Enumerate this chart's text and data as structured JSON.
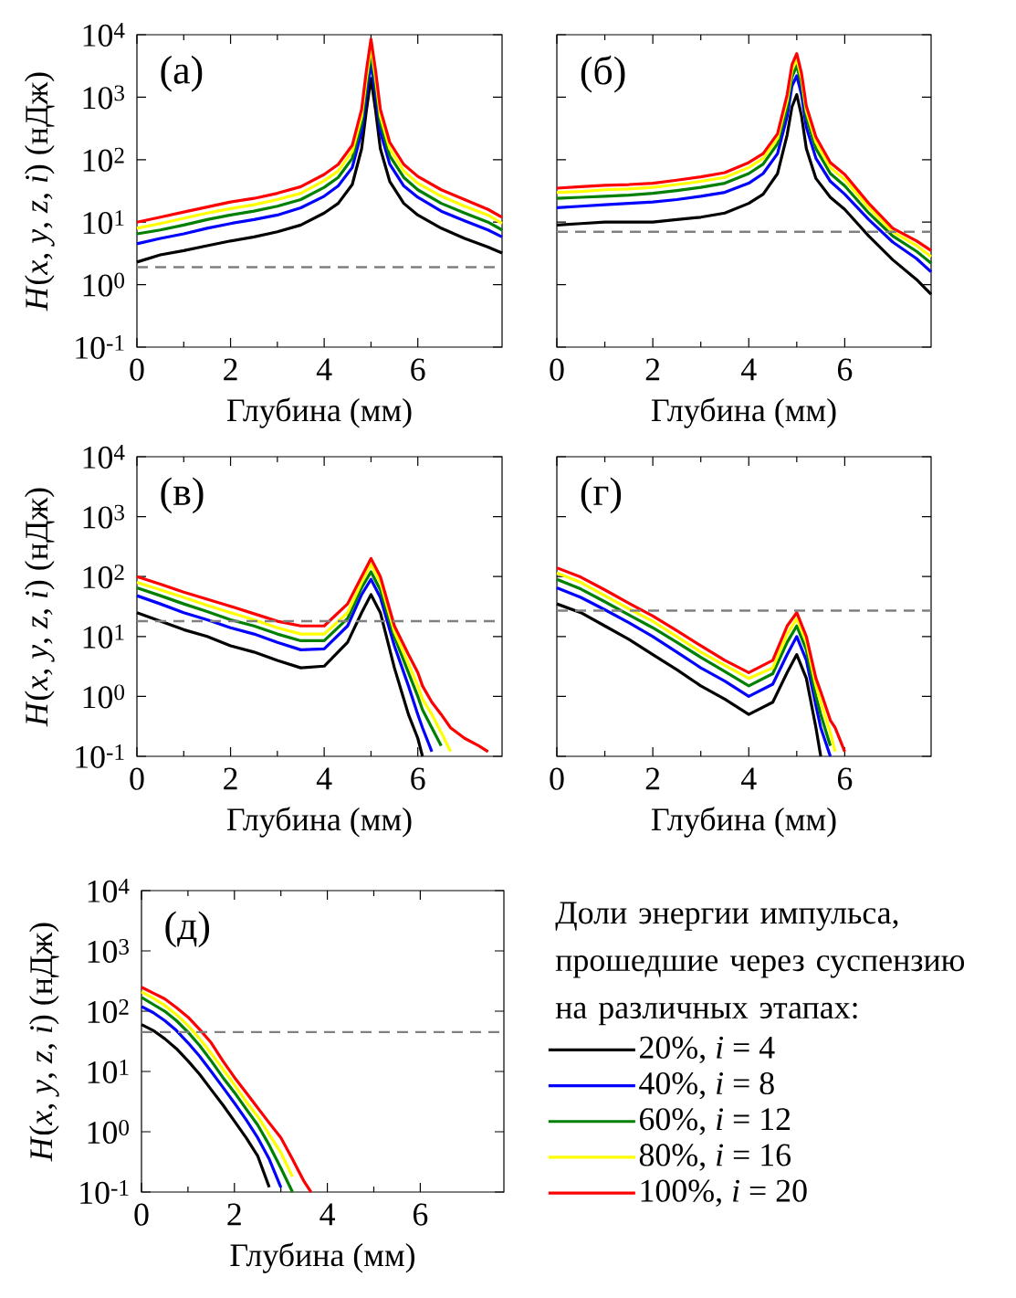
{
  "chart_data": [
    {
      "type": "line",
      "xlabel": "Глубина (мм)",
      "ylabel": "*H*(*x*, *y*, *z*, *i*) (нДж)",
      "annotations": [
        "(а)"
      ],
      "log": "y",
      "marker": "none",
      "xlim": [
        0,
        7.8
      ],
      "xticks": [
        0,
        2,
        4,
        6
      ],
      "ylim": [
        0.1,
        10000
      ],
      "yticks": [
        {
          "value": 0.1,
          "label": "10$^{-1}$"
        },
        {
          "value": 1,
          "label": "10$^{0}$"
        },
        {
          "value": 10,
          "label": "10$^{1}$"
        },
        {
          "value": 100,
          "label": "10$^{2}$"
        },
        {
          "value": 1000,
          "label": "10$^{3}$"
        },
        {
          "value": 10000,
          "label": "10$^{4}$"
        }
      ],
      "ref_lines": [
        {
          "axis": "y",
          "value": 1.9,
          "color": "#808080",
          "line_style": "dashed"
        }
      ],
      "x": [
        0,
        0.5,
        1,
        1.5,
        2,
        2.5,
        3,
        3.5,
        4,
        4.3,
        4.6,
        4.8,
        4.9,
        5,
        5.1,
        5.2,
        5.4,
        5.7,
        6,
        6.5,
        7,
        7.5,
        7.8
      ],
      "series": [
        {
          "color": "#000000",
          "values": [
            2.3,
            3,
            3.5,
            4.2,
            5,
            5.8,
            7,
            9,
            14,
            20,
            40,
            150,
            600,
            2000,
            600,
            150,
            45,
            20,
            13,
            8,
            5.5,
            4,
            3.2
          ]
        },
        {
          "color": "#0000ff",
          "values": [
            4.5,
            5.5,
            6.5,
            8,
            9.5,
            11,
            13,
            17,
            26,
            38,
            75,
            280,
            1100,
            3500,
            1100,
            280,
            85,
            38,
            25,
            15,
            10.5,
            7.5,
            5.8
          ]
        },
        {
          "color": "#008000",
          "values": [
            6.5,
            7.5,
            9,
            11,
            13,
            15,
            18,
            23,
            36,
            52,
            105,
            390,
            1550,
            5000,
            1550,
            390,
            115,
            52,
            33,
            20,
            14,
            10,
            7.5
          ]
        },
        {
          "color": "#ffff00",
          "values": [
            8,
            9.5,
            11.5,
            14,
            16.5,
            19,
            23,
            29,
            46,
            66,
            135,
            500,
            2000,
            6500,
            2000,
            500,
            150,
            66,
            42,
            26,
            18,
            13,
            9.5
          ]
        },
        {
          "color": "#ff0000",
          "values": [
            10,
            12,
            14.5,
            17.5,
            21,
            24,
            29,
            37,
            58,
            84,
            170,
            640,
            2600,
            8500,
            2600,
            640,
            190,
            84,
            54,
            33,
            23,
            16,
            12
          ]
        }
      ]
    },
    {
      "type": "line",
      "xlabel": "Глубина (мм)",
      "annotations": [
        "(б)"
      ],
      "log": "y",
      "marker": "none",
      "tick_labels": "x",
      "xlim": [
        0,
        7.8
      ],
      "xticks": [
        0,
        2,
        4,
        6
      ],
      "ylim": [
        0.1,
        10000
      ],
      "yticks": [
        {
          "value": 0.1,
          "label": null
        },
        {
          "value": 1,
          "label": null
        },
        {
          "value": 10,
          "label": null
        },
        {
          "value": 100,
          "label": null
        },
        {
          "value": 1000,
          "label": null
        },
        {
          "value": 10000,
          "label": null
        }
      ],
      "ref_lines": [
        {
          "axis": "y",
          "value": 7,
          "color": "#808080",
          "line_style": "dashed"
        }
      ],
      "x": [
        0,
        0.5,
        1,
        1.5,
        2,
        2.5,
        3,
        3.5,
        4,
        4.3,
        4.6,
        4.8,
        4.9,
        5,
        5.1,
        5.2,
        5.4,
        5.7,
        6,
        6.5,
        7,
        7.5,
        7.8
      ],
      "series": [
        {
          "color": "#000000",
          "values": [
            9,
            9.5,
            10,
            10,
            10,
            11,
            12,
            14,
            20,
            28,
            60,
            250,
            700,
            1100,
            500,
            150,
            50,
            25,
            16,
            6,
            2.5,
            1.2,
            0.7
          ]
        },
        {
          "color": "#0000ff",
          "values": [
            17,
            18,
            19,
            20,
            21,
            23,
            26,
            30,
            42,
            60,
            125,
            500,
            1500,
            2200,
            1100,
            330,
            105,
            45,
            28,
            11,
            4.8,
            2.6,
            1.6
          ]
        },
        {
          "color": "#008000",
          "values": [
            24,
            25,
            26,
            27,
            29,
            32,
            36,
            42,
            60,
            85,
            180,
            700,
            2100,
            3200,
            1600,
            480,
            150,
            60,
            38,
            14,
            6,
            3.4,
            2.2
          ]
        },
        {
          "color": "#ffff00",
          "values": [
            30,
            31,
            33,
            34,
            36,
            40,
            45,
            52,
            75,
            105,
            220,
            900,
            2700,
            4100,
            2000,
            600,
            190,
            75,
            48,
            17,
            7,
            4.2,
            2.8
          ]
        },
        {
          "color": "#ff0000",
          "values": [
            35,
            37,
            39,
            40,
            42,
            47,
            53,
            62,
            90,
            125,
            260,
            1100,
            3300,
            5000,
            2400,
            720,
            230,
            90,
            58,
            20,
            8,
            5,
            3.5
          ]
        }
      ]
    },
    {
      "type": "line",
      "xlabel": "Глубина (мм)",
      "ylabel": "*H*(*x*, *y*, *z*, *i*) (нДж)",
      "annotations": [
        "(в)"
      ],
      "log": "y",
      "marker": "none",
      "xlim": [
        0,
        7.8
      ],
      "xticks": [
        0,
        2,
        4,
        6
      ],
      "ylim": [
        0.1,
        10000
      ],
      "yticks": [
        {
          "value": 0.1,
          "label": "10$^{-1}$"
        },
        {
          "value": 1,
          "label": "10$^{0}$"
        },
        {
          "value": 10,
          "label": "10$^{1}$"
        },
        {
          "value": 100,
          "label": "10$^{2}$"
        },
        {
          "value": 1000,
          "label": "10$^{3}$"
        },
        {
          "value": 10000,
          "label": "10$^{4}$"
        }
      ],
      "ref_lines": [
        {
          "axis": "y",
          "value": 18,
          "color": "#808080",
          "line_style": "dashed"
        }
      ],
      "x": [
        0,
        0.5,
        1,
        1.5,
        2,
        2.5,
        3,
        3.5,
        4,
        4.5,
        4.8,
        5,
        5.2,
        5.5,
        5.8,
        6,
        6.1,
        6.3,
        6.5,
        6.7,
        7,
        7.3,
        7.5
      ],
      "series": [
        {
          "color": "#000000",
          "values": [
            25,
            18,
            13,
            10,
            7,
            5.5,
            4,
            3,
            3.2,
            8,
            25,
            50,
            25,
            3,
            0.5,
            0.2,
            0.1,
            null,
            null,
            null,
            null,
            null,
            null
          ]
        },
        {
          "color": "#0000ff",
          "values": [
            48,
            35,
            25,
            19,
            14,
            11,
            8,
            6,
            6.2,
            15,
            50,
            90,
            45,
            7,
            1.5,
            0.5,
            0.3,
            0.12,
            null,
            null,
            null,
            null,
            null
          ]
        },
        {
          "color": "#008000",
          "values": [
            65,
            48,
            35,
            26,
            19,
            15,
            11,
            8.5,
            8.5,
            20,
            65,
            120,
            60,
            10,
            2.5,
            1,
            0.6,
            0.3,
            0.15,
            null,
            null,
            null,
            null
          ]
        },
        {
          "color": "#ffff00",
          "values": [
            80,
            60,
            45,
            33,
            25,
            19,
            14,
            11,
            11,
            25,
            80,
            160,
            80,
            12,
            3.5,
            1.5,
            0.9,
            0.5,
            0.25,
            0.12,
            null,
            null,
            null
          ]
        },
        {
          "color": "#ff0000",
          "values": [
            100,
            75,
            55,
            42,
            32,
            24,
            18,
            15,
            15,
            35,
            100,
            200,
            100,
            15,
            5,
            2.5,
            1.5,
            0.8,
            0.5,
            0.3,
            0.2,
            0.15,
            0.12
          ]
        }
      ]
    },
    {
      "type": "line",
      "xlabel": "Глубина (мм)",
      "annotations": [
        "(г)"
      ],
      "log": "y",
      "marker": "none",
      "tick_labels": "x",
      "xlim": [
        0,
        7.8
      ],
      "xticks": [
        0,
        2,
        4,
        6
      ],
      "ylim": [
        0.1,
        10000
      ],
      "yticks": [
        {
          "value": 0.1,
          "label": null
        },
        {
          "value": 1,
          "label": null
        },
        {
          "value": 10,
          "label": null
        },
        {
          "value": 100,
          "label": null
        },
        {
          "value": 1000,
          "label": null
        },
        {
          "value": 10000,
          "label": null
        }
      ],
      "ref_lines": [
        {
          "axis": "y",
          "value": 27,
          "color": "#808080",
          "line_style": "dashed"
        }
      ],
      "x": [
        0,
        0.5,
        1,
        1.5,
        2,
        2.5,
        3,
        3.5,
        4,
        4.5,
        4.8,
        5,
        5.2,
        5.4,
        5.5,
        5.7,
        5.8,
        6
      ],
      "series": [
        {
          "color": "#000000",
          "values": [
            35,
            25,
            15,
            9,
            5,
            2.8,
            1.5,
            0.9,
            0.5,
            0.8,
            2.5,
            5,
            2,
            0.3,
            0.1,
            null,
            null,
            null
          ]
        },
        {
          "color": "#0000ff",
          "values": [
            65,
            45,
            28,
            17,
            10,
            5.5,
            3,
            1.8,
            1,
            1.6,
            5,
            10,
            4,
            0.7,
            0.3,
            0.1,
            null,
            null
          ]
        },
        {
          "color": "#008000",
          "values": [
            90,
            62,
            38,
            23,
            14,
            8,
            4.5,
            2.6,
            1.5,
            2.4,
            8,
            15,
            6,
            1,
            0.5,
            0.15,
            null,
            null
          ]
        },
        {
          "color": "#ffff00",
          "values": [
            115,
            80,
            48,
            29,
            18,
            10,
            5.5,
            3.3,
            2,
            3,
            11,
            20,
            8,
            1.5,
            0.8,
            0.25,
            0.12,
            null
          ]
        },
        {
          "color": "#ff0000",
          "values": [
            140,
            98,
            60,
            36,
            22,
            12.5,
            7,
            4,
            2.5,
            4,
            15,
            25,
            10,
            2,
            1.2,
            0.4,
            0.3,
            0.12
          ]
        }
      ]
    },
    {
      "type": "line",
      "xlabel": "Глубина (мм)",
      "ylabel": "*H*(*x*, *y*, *z*, *i*) (нДж)",
      "annotations": [
        "(д)"
      ],
      "log": "y",
      "marker": "none",
      "legend": "right",
      "legend_title": "Доли энергии импульса, прошедшие через суспензию на различных этапах:",
      "xlim": [
        0,
        7.8
      ],
      "xticks": [
        0,
        2,
        4,
        6
      ],
      "ylim": [
        0.1,
        10000
      ],
      "yticks": [
        {
          "value": 0.1,
          "label": "10$^{-1}$"
        },
        {
          "value": 1,
          "label": "10$^{0}$"
        },
        {
          "value": 10,
          "label": "10$^{1}$"
        },
        {
          "value": 100,
          "label": "10$^{2}$"
        },
        {
          "value": 1000,
          "label": "10$^{3}$"
        },
        {
          "value": 10000,
          "label": "10$^{4}$"
        }
      ],
      "ref_lines": [
        {
          "axis": "y",
          "value": 45,
          "color": "#808080",
          "line_style": "dashed"
        }
      ],
      "x": [
        0,
        0.25,
        0.5,
        0.75,
        1,
        1.25,
        1.5,
        1.75,
        2,
        2.25,
        2.5,
        2.75,
        3,
        3.25,
        3.5,
        3.65
      ],
      "series": [
        {
          "name": "20%,  *i* = 4",
          "color": "#000000",
          "values": [
            60,
            48,
            35,
            24,
            15,
            9,
            5,
            2.8,
            1.5,
            0.8,
            0.4,
            0.12,
            null,
            null,
            null,
            null
          ]
        },
        {
          "name": "40%,  *i* = 8",
          "color": "#0000ff",
          "values": [
            120,
            95,
            70,
            48,
            30,
            18,
            10,
            5.5,
            3,
            1.6,
            0.8,
            0.35,
            0.12,
            null,
            null,
            null
          ]
        },
        {
          "name": "60%,  *i* = 12",
          "color": "#008000",
          "values": [
            170,
            130,
            100,
            70,
            45,
            27,
            15,
            8,
            4.5,
            2.4,
            1.3,
            0.6,
            0.25,
            0.1,
            null,
            null
          ]
        },
        {
          "name": "80%,  *i* = 16",
          "color": "#ffff00",
          "values": [
            210,
            165,
            125,
            88,
            58,
            35,
            20,
            11,
            6,
            3.2,
            1.8,
            0.9,
            0.45,
            0.18,
            null,
            null
          ]
        },
        {
          "name": "100%,  *i* = 20",
          "color": "#ff0000",
          "values": [
            250,
            200,
            160,
            115,
            80,
            50,
            30,
            15,
            8,
            4.5,
            2.5,
            1.4,
            0.8,
            0.35,
            0.15,
            0.1
          ]
        }
      ]
    }
  ]
}
